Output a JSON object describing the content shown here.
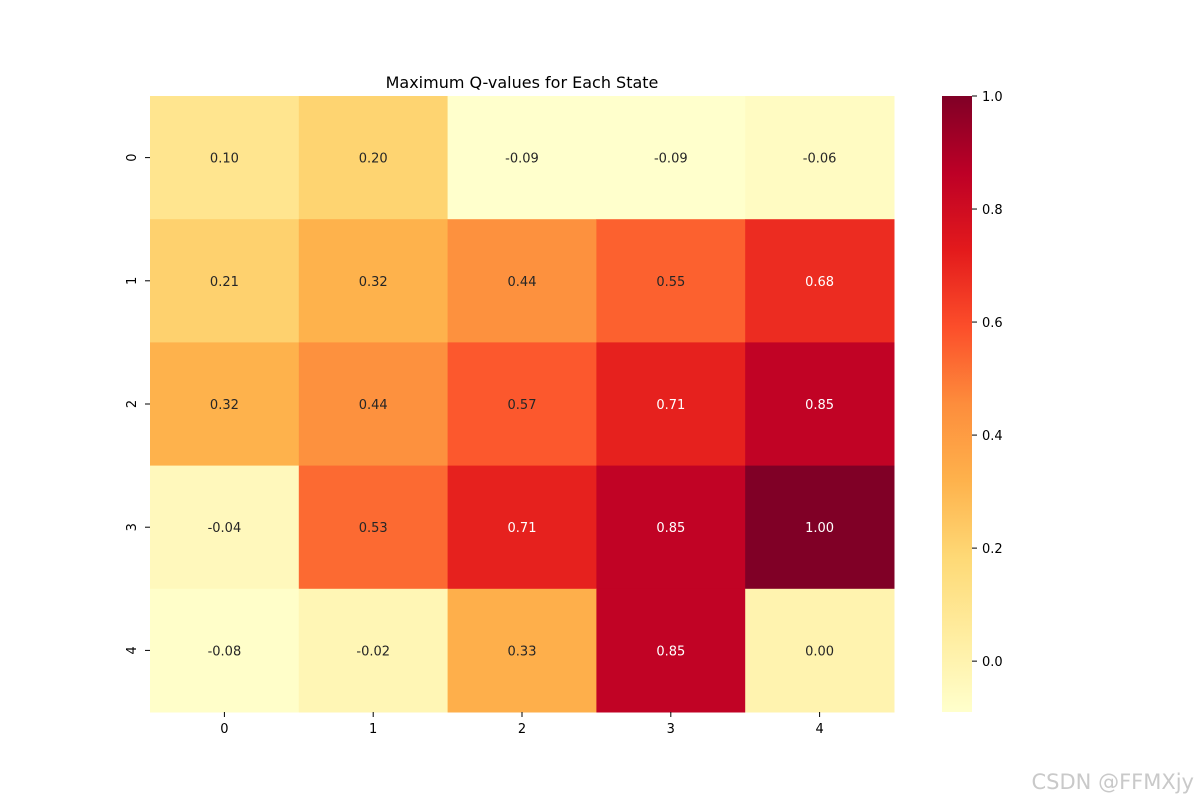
{
  "chart_data": {
    "type": "heatmap",
    "title": "Maximum Q-values for Each State",
    "xlabel": "",
    "ylabel": "",
    "x_categories": [
      "0",
      "1",
      "2",
      "3",
      "4"
    ],
    "y_categories": [
      "0",
      "1",
      "2",
      "3",
      "4"
    ],
    "values": [
      [
        0.1,
        0.2,
        -0.09,
        -0.09,
        -0.06
      ],
      [
        0.21,
        0.32,
        0.44,
        0.55,
        0.68
      ],
      [
        0.32,
        0.44,
        0.57,
        0.71,
        0.85
      ],
      [
        -0.04,
        0.53,
        0.71,
        0.85,
        1.0
      ],
      [
        -0.08,
        -0.02,
        0.33,
        0.85,
        0.0
      ]
    ],
    "annotations": [
      [
        "0.10",
        "0.20",
        "-0.09",
        "-0.09",
        "-0.06"
      ],
      [
        "0.21",
        "0.32",
        "0.44",
        "0.55",
        "0.68"
      ],
      [
        "0.32",
        "0.44",
        "0.57",
        "0.71",
        "0.85"
      ],
      [
        "-0.04",
        "0.53",
        "0.71",
        "0.85",
        "1.00"
      ],
      [
        "-0.08",
        "-0.02",
        "0.33",
        "0.85",
        "0.00"
      ]
    ],
    "colormap": "YlOrRd",
    "colorbar": {
      "range": [
        -0.09,
        1.0
      ],
      "ticks": [
        0.0,
        0.2,
        0.4,
        0.6,
        0.8,
        1.0
      ],
      "tick_labels": [
        "0.0",
        "0.2",
        "0.4",
        "0.6",
        "0.8",
        "1.0"
      ]
    }
  },
  "watermark": "CSDN @FFMXjy"
}
